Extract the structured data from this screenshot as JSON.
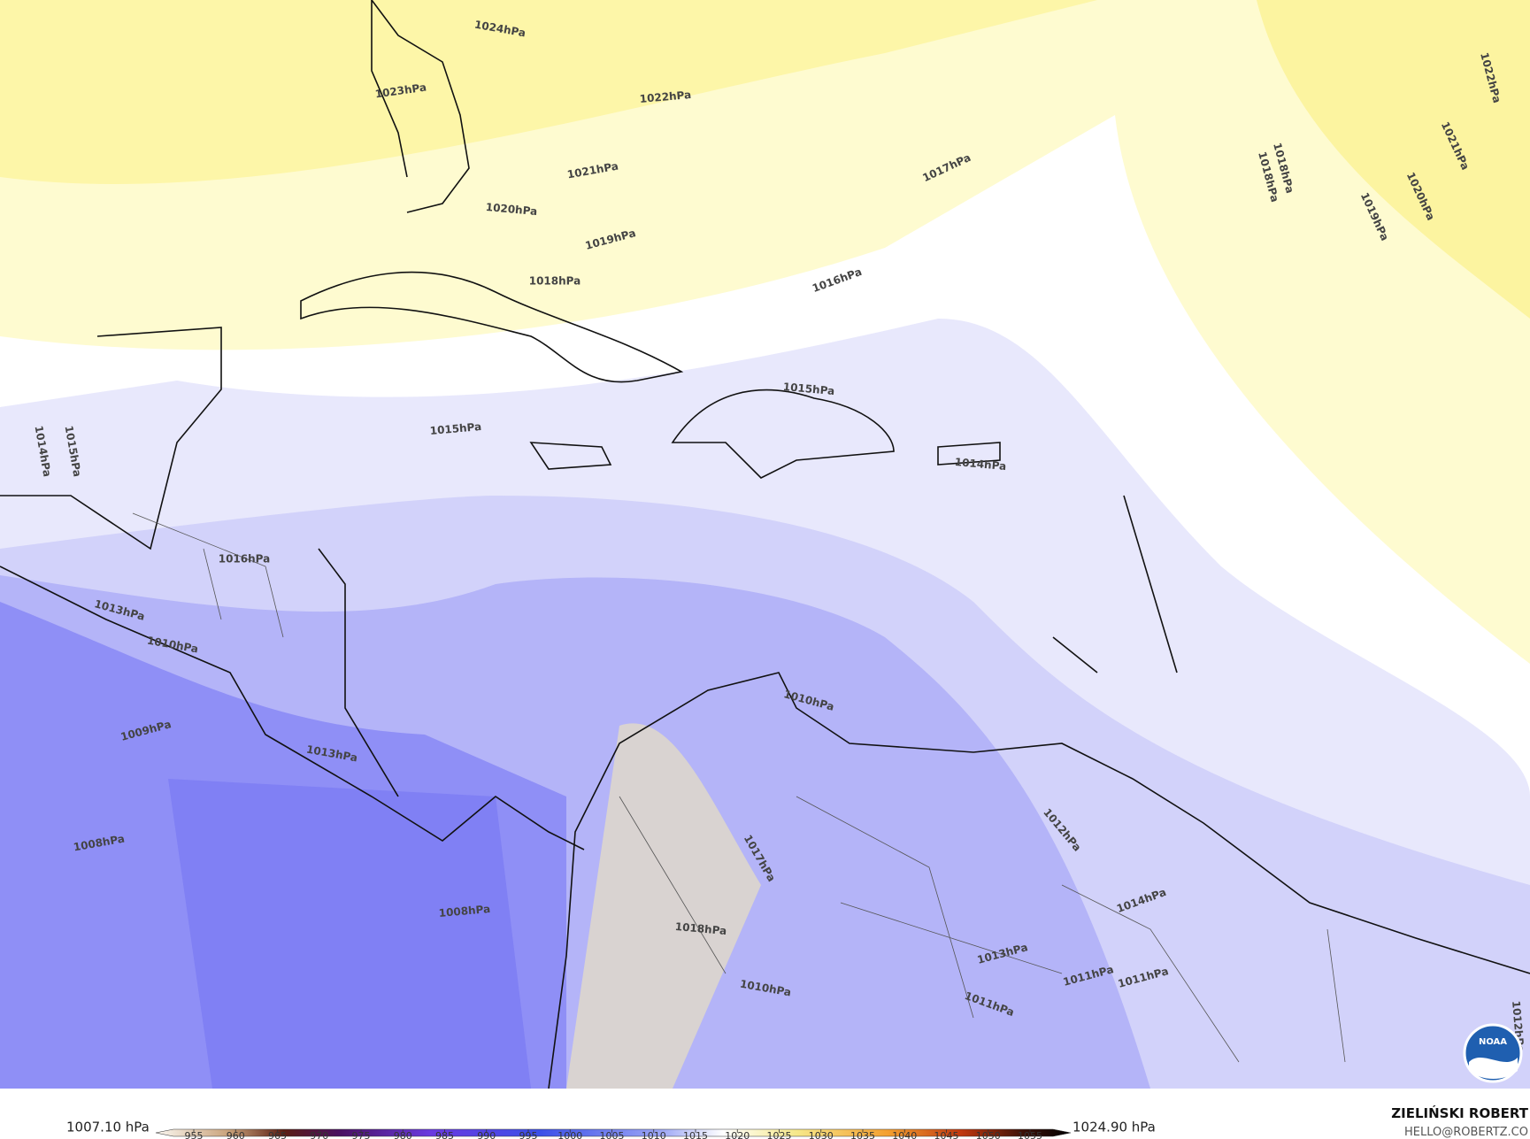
{
  "map": {
    "contour_labels": [
      "1024hPa",
      "1023hPa",
      "1022hPa",
      "1021hPa",
      "1020hPa",
      "1019hPa",
      "1018hPa",
      "1017hPa",
      "1016hPa",
      "1015hPa",
      "1015hPa",
      "1014hPa",
      "1015hPa",
      "1016hPa",
      "1013hPa",
      "1010hPa",
      "1009hPa",
      "1008hPa",
      "1008hPa",
      "1013hPa",
      "1010hPa",
      "1012hPa",
      "1011hPa",
      "1014hPa",
      "1013hPa",
      "1011hPa",
      "1011hPa",
      "1010hPa",
      "1018hPa",
      "1014hPa",
      "1022hPa",
      "1021hPa",
      "1020hPa",
      "1019hPa",
      "1018hPa",
      "1012hPa",
      "1017hPa",
      "1018hPa"
    ],
    "colorbar": {
      "min_label": "1007.10 hPa",
      "max_label": "1024.90 hPa",
      "ticks": [
        955,
        960,
        965,
        970,
        975,
        980,
        985,
        990,
        995,
        1000,
        1005,
        1010,
        1015,
        1020,
        1025,
        1030,
        1035,
        1040,
        1045,
        1050,
        1055
      ]
    },
    "credit": {
      "name": "ZIELIŃSKI ROBERT",
      "email": "HELLO@ROBERTZ.CO"
    }
  }
}
